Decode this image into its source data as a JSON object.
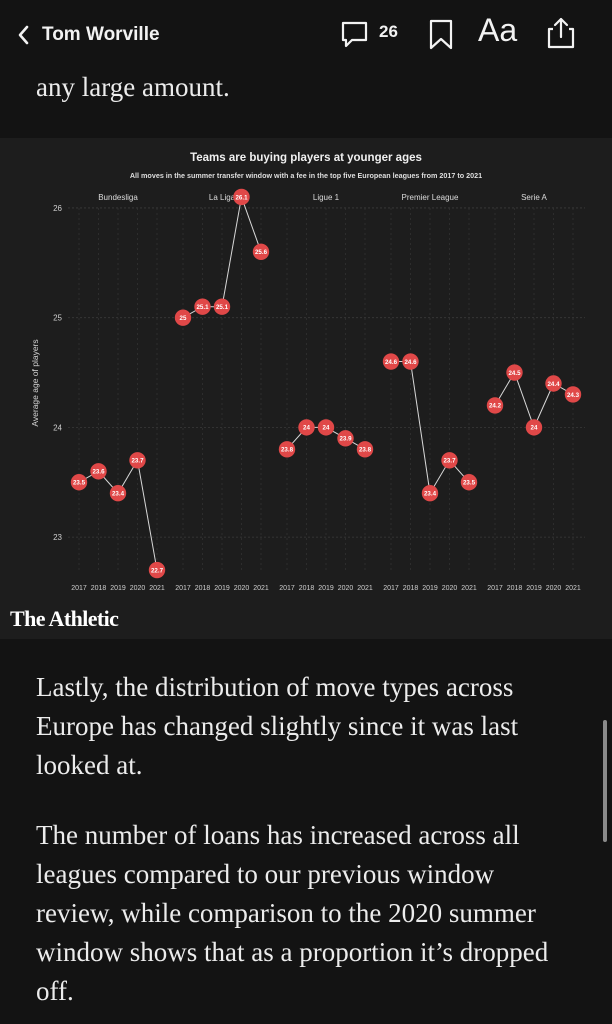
{
  "header": {
    "back_label": "Tom Worville",
    "comment_count": "26",
    "font_label": "Aa"
  },
  "article": {
    "lead_line": "any large amount.",
    "para1": "Lastly, the distribution of move types across Europe has changed slightly since it was last looked at.",
    "para2": "The number of loans has increased across all leagues compared to our previous window review, while comparison to the 2020 summer window shows that as a proportion it’s dropped off."
  },
  "brand": "The Athletic",
  "colors": {
    "background": "#131313",
    "chart_bg": "#1d1d1d",
    "marker": "#e04848",
    "text": "#f2f2f2"
  },
  "icons": [
    "chevron-left-icon",
    "comment-icon",
    "bookmark-icon",
    "share-icon"
  ],
  "chart_data": {
    "type": "line",
    "title": "Teams are buying players at younger ages",
    "subtitle": "All moves in the summer transfer window with a fee in the top five European leagues from 2017 to 2021",
    "ylabel": "Average age of players",
    "ylim": [
      22.6,
      26.2
    ],
    "yticks": [
      23,
      24,
      25,
      26
    ],
    "x": [
      "2017",
      "2018",
      "2019",
      "2020",
      "2021"
    ],
    "grid": true,
    "panels": [
      {
        "name": "Bundesliga",
        "values": [
          23.5,
          23.6,
          23.4,
          23.7,
          22.7
        ],
        "labels": [
          "23.5",
          "23.6",
          "23.4",
          "23.7",
          "22.7"
        ]
      },
      {
        "name": "La Liga",
        "values": [
          25.0,
          25.1,
          25.1,
          26.1,
          25.6
        ],
        "labels": [
          "25",
          "25.1",
          "25.1",
          "26.1",
          "25.6"
        ]
      },
      {
        "name": "Ligue 1",
        "values": [
          23.8,
          24.0,
          24.0,
          23.9,
          23.8
        ],
        "labels": [
          "23.8",
          "24",
          "24",
          "23.9",
          "23.8"
        ]
      },
      {
        "name": "Premier League",
        "values": [
          24.6,
          24.6,
          23.4,
          23.7,
          23.5
        ],
        "labels": [
          "24.6",
          "24.6",
          "23.4",
          "23.7",
          "23.5"
        ]
      },
      {
        "name": "Serie A",
        "values": [
          24.2,
          24.5,
          24.0,
          24.4,
          24.3
        ],
        "labels": [
          "24.2",
          "24.5",
          "24",
          "24.4",
          "24.3"
        ]
      }
    ]
  }
}
